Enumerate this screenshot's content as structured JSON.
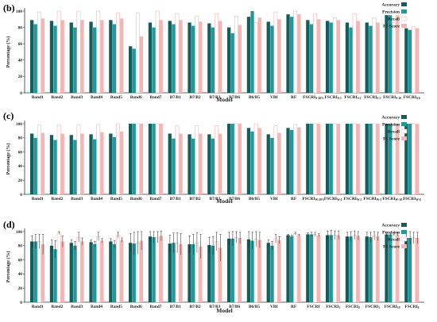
{
  "colors": {
    "accuracy": "#115e5c",
    "precision": "#1e9a9e",
    "recall": "#ffffff",
    "recall_stroke": "#f0a8a8",
    "f1": "#f4b6b4",
    "axis": "#333333"
  },
  "chart_data": [
    {
      "panel": "(b)",
      "type": "bar",
      "ylabel": "Percentage (%)",
      "xlabel": "Model",
      "ylim": [
        0,
        100
      ],
      "yticks": [
        0,
        20,
        40,
        60,
        80,
        100
      ],
      "legend_position": "top-right",
      "categories": [
        {
          "main": "Band1",
          "sub": ""
        },
        {
          "main": "Band2",
          "sub": ""
        },
        {
          "main": "Band3",
          "sub": ""
        },
        {
          "main": "Band4",
          "sub": ""
        },
        {
          "main": "Band5",
          "sub": ""
        },
        {
          "main": "Band6",
          "sub": ""
        },
        {
          "main": "Band7",
          "sub": ""
        },
        {
          "main": "B7/B1",
          "sub": ""
        },
        {
          "main": "B7/B2",
          "sub": ""
        },
        {
          "main": "B7/B3",
          "sub": ""
        },
        {
          "main": "B7/B6",
          "sub": ""
        },
        {
          "main": "B6/B5",
          "sub": ""
        },
        {
          "main": "VBI",
          "sub": ""
        },
        {
          "main": "RF",
          "sub": ""
        },
        {
          "main": "FSCRI",
          "sub": "S-20%"
        },
        {
          "main": "FSCRI",
          "sub": "S-1"
        },
        {
          "main": "FSCRI",
          "sub": "S-2"
        },
        {
          "main": "FSCRI",
          "sub": "S-3"
        },
        {
          "main": "FSCRI",
          "sub": "S-10"
        },
        {
          "main": "FSCRI",
          "sub": "S-6"
        }
      ],
      "series": [
        {
          "name": "Accuracy",
          "values": [
            89,
            88,
            86,
            87,
            89,
            57,
            86,
            88,
            86,
            85,
            80,
            93,
            87,
            96,
            89,
            88,
            86,
            86,
            95,
            79
          ]
        },
        {
          "name": "Precision",
          "values": [
            84,
            82,
            80,
            80,
            84,
            54,
            80,
            84,
            82,
            80,
            73,
            100,
            82,
            93,
            84,
            86,
            80,
            82,
            95,
            77
          ]
        },
        {
          "name": "Recall",
          "values": [
            99,
            100,
            100,
            100,
            98,
            98,
            100,
            97,
            94,
            97,
            94,
            86,
            99,
            100,
            97,
            92,
            97,
            92,
            86,
            81
          ]
        },
        {
          "name": "F1 Score",
          "values": [
            91,
            89,
            89,
            89,
            91,
            69,
            89,
            89,
            87,
            88,
            83,
            92,
            90,
            96,
            90,
            89,
            88,
            86,
            95,
            79
          ]
        }
      ]
    },
    {
      "panel": "(c)",
      "type": "bar",
      "ylabel": "Percentage (%)",
      "xlabel": "Model",
      "ylim": [
        0,
        100
      ],
      "yticks": [
        0,
        20,
        40,
        60,
        80,
        100
      ],
      "legend_position": "top-right",
      "categories": [
        {
          "main": "Band1",
          "sub": ""
        },
        {
          "main": "Band2",
          "sub": ""
        },
        {
          "main": "Band3",
          "sub": ""
        },
        {
          "main": "Band4",
          "sub": ""
        },
        {
          "main": "Band5",
          "sub": ""
        },
        {
          "main": "Band6",
          "sub": ""
        },
        {
          "main": "Band7",
          "sub": ""
        },
        {
          "main": "B7/B1",
          "sub": ""
        },
        {
          "main": "B7/B2",
          "sub": ""
        },
        {
          "main": "B7/B3",
          "sub": ""
        },
        {
          "main": "B7/B6",
          "sub": ""
        },
        {
          "main": "B6/B5",
          "sub": ""
        },
        {
          "main": "VBI",
          "sub": ""
        },
        {
          "main": "RF",
          "sub": ""
        },
        {
          "main": "FSCRI",
          "sub": "W-20%"
        },
        {
          "main": "FSCRI",
          "sub": "W-1"
        },
        {
          "main": "FSCRI",
          "sub": "W-2"
        },
        {
          "main": "FSCRI",
          "sub": "W-3"
        },
        {
          "main": "FSCRI",
          "sub": "W-10"
        },
        {
          "main": "FSCRI",
          "sub": "W-6"
        }
      ],
      "series": [
        {
          "name": "Accuracy",
          "values": [
            86,
            84,
            84,
            85,
            86,
            100,
            100,
            86,
            85,
            85,
            100,
            94,
            85,
            94,
            100,
            100,
            100,
            100,
            100,
            100
          ]
        },
        {
          "name": "Precision",
          "values": [
            80,
            77,
            77,
            78,
            81,
            100,
            100,
            79,
            79,
            79,
            100,
            89,
            80,
            91,
            100,
            100,
            100,
            100,
            100,
            100
          ]
        },
        {
          "name": "Recall",
          "values": [
            98,
            98,
            98,
            99,
            100,
            100,
            100,
            97,
            97,
            97,
            100,
            100,
            97,
            99,
            100,
            100,
            100,
            100,
            100,
            100
          ]
        },
        {
          "name": "F1 Score",
          "values": [
            87,
            86,
            86,
            88,
            89,
            100,
            100,
            86,
            86,
            86,
            100,
            94,
            87,
            95,
            100,
            100,
            100,
            100,
            100,
            100
          ]
        }
      ]
    },
    {
      "panel": "(d)",
      "type": "bar",
      "ylabel": "Percentage (%)",
      "xlabel": "Model",
      "ylim": [
        0,
        100
      ],
      "yticks": [
        0,
        20,
        40,
        60,
        80,
        100
      ],
      "legend_position": "top-right",
      "error_bars": true,
      "categories": [
        {
          "main": "Band1",
          "sub": ""
        },
        {
          "main": "Band2",
          "sub": ""
        },
        {
          "main": "Band3",
          "sub": ""
        },
        {
          "main": "Band4",
          "sub": ""
        },
        {
          "main": "Band5",
          "sub": ""
        },
        {
          "main": "Band6",
          "sub": ""
        },
        {
          "main": "Band7",
          "sub": ""
        },
        {
          "main": "B7/B1",
          "sub": ""
        },
        {
          "main": "B7/B2",
          "sub": ""
        },
        {
          "main": "B7/B3",
          "sub": ""
        },
        {
          "main": "B7/B6",
          "sub": ""
        },
        {
          "main": "B6/B5",
          "sub": ""
        },
        {
          "main": "VBI",
          "sub": ""
        },
        {
          "main": "RF",
          "sub": ""
        },
        {
          "main": "FSCRI",
          "sub": ""
        },
        {
          "main": "FSCRI",
          "sub": "1"
        },
        {
          "main": "FSCRI",
          "sub": "2"
        },
        {
          "main": "FSCRI",
          "sub": "3"
        },
        {
          "main": "FSCRI",
          "sub": "10"
        },
        {
          "main": "FSCRI",
          "sub": "6"
        }
      ],
      "series": [
        {
          "name": "Accuracy",
          "values": [
            86,
            80,
            84,
            85,
            86,
            84,
            93,
            83,
            82,
            81,
            90,
            89,
            84,
            95,
            96,
            95,
            93,
            93,
            96,
            91
          ],
          "errors": [
            8,
            8,
            4,
            3,
            4,
            13,
            7,
            12,
            12,
            11,
            9,
            11,
            4,
            1,
            2,
            6,
            6,
            6,
            2,
            8
          ]
        },
        {
          "name": "Precision",
          "values": [
            86,
            75,
            80,
            82,
            82,
            83,
            92,
            84,
            82,
            80,
            90,
            87,
            80,
            93,
            96,
            95,
            93,
            92,
            96,
            91
          ],
          "errors": [
            10,
            12,
            6,
            4,
            5,
            16,
            8,
            14,
            14,
            13,
            10,
            12,
            6,
            2,
            3,
            7,
            7,
            7,
            2,
            9
          ]
        },
        {
          "name": "Recall",
          "values": [
            86,
            98,
            92,
            93,
            95,
            84,
            92,
            84,
            84,
            86,
            92,
            89,
            90,
            97,
            96,
            95,
            95,
            94,
            96,
            91
          ],
          "errors": [
            10,
            2,
            7,
            6,
            4,
            16,
            8,
            14,
            14,
            13,
            8,
            11,
            6,
            2,
            3,
            6,
            6,
            6,
            2,
            8
          ]
        },
        {
          "name": "F1 Score",
          "values": [
            82,
            86,
            86,
            87,
            88,
            87,
            94,
            82,
            79,
            77,
            91,
            88,
            88,
            95,
            95,
            95,
            94,
            93,
            96,
            91
          ],
          "errors": [
            14,
            8,
            5,
            3,
            3,
            13,
            7,
            15,
            17,
            19,
            8,
            11,
            5,
            1,
            2,
            6,
            6,
            6,
            2,
            8
          ]
        }
      ]
    }
  ]
}
